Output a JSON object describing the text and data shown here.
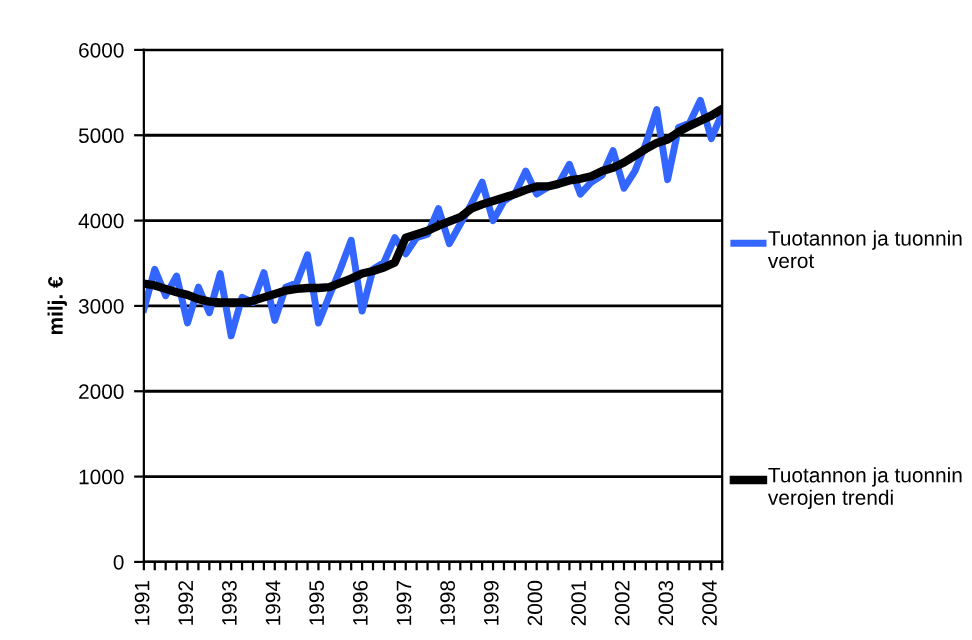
{
  "chart_data": {
    "type": "line",
    "ylabel": "milj. €",
    "categories": [
      "1991",
      null,
      null,
      null,
      "1992",
      null,
      null,
      null,
      "1993",
      null,
      null,
      null,
      "1994",
      null,
      null,
      null,
      "1995",
      null,
      null,
      null,
      "1996",
      null,
      null,
      null,
      "1997",
      null,
      null,
      null,
      "1998",
      null,
      null,
      null,
      "1999",
      null,
      null,
      null,
      "2000",
      null,
      null,
      null,
      "2001",
      null,
      null,
      null,
      "2002",
      null,
      null,
      null,
      "2003",
      null,
      null,
      null,
      "2004",
      null
    ],
    "series": [
      {
        "name": "Tuotannon ja tuonnin verot",
        "color": "#3366ff",
        "values": [
          2960,
          3430,
          3120,
          3350,
          2800,
          3220,
          2920,
          3380,
          2650,
          3100,
          3040,
          3390,
          2830,
          3220,
          3270,
          3600,
          2800,
          3120,
          3430,
          3770,
          2940,
          3430,
          3510,
          3800,
          3610,
          3800,
          3840,
          4140,
          3730,
          3960,
          4190,
          4450,
          4000,
          4230,
          4310,
          4580,
          4310,
          4390,
          4430,
          4660,
          4310,
          4450,
          4530,
          4820,
          4380,
          4580,
          4900,
          5300,
          4480,
          5090,
          5140,
          5410,
          4960,
          5260
        ]
      },
      {
        "name": "Tuotannon ja tuonnin verojen trendi",
        "color": "#000000",
        "values": [
          3260,
          3240,
          3200,
          3160,
          3130,
          3080,
          3050,
          3040,
          3040,
          3040,
          3060,
          3100,
          3140,
          3180,
          3200,
          3210,
          3210,
          3220,
          3270,
          3320,
          3380,
          3410,
          3450,
          3510,
          3800,
          3840,
          3880,
          3940,
          3990,
          4040,
          4140,
          4190,
          4230,
          4270,
          4310,
          4360,
          4400,
          4400,
          4430,
          4470,
          4490,
          4520,
          4580,
          4620,
          4680,
          4760,
          4840,
          4910,
          4950,
          5040,
          5110,
          5170,
          5230,
          5310
        ]
      }
    ],
    "ylim": [
      0,
      6000
    ],
    "yticks": [
      0,
      1000,
      2000,
      3000,
      4000,
      5000,
      6000
    ],
    "grid": "y",
    "legend": "right",
    "marker": "none",
    "line_style": "solid"
  }
}
